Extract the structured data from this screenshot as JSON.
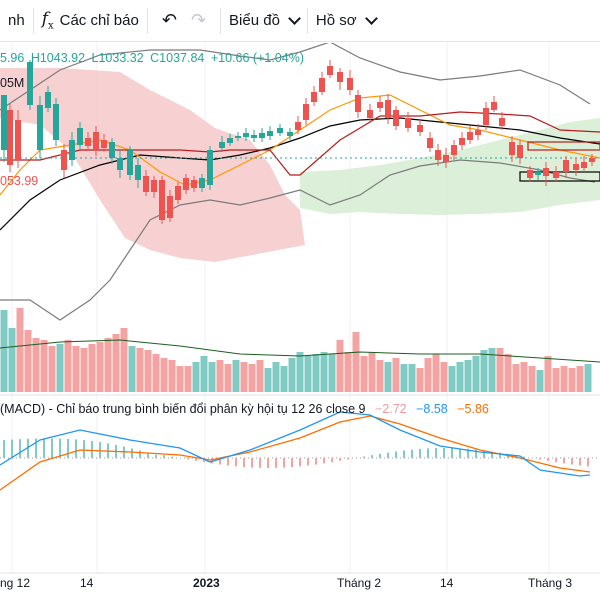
{
  "toolbar": {
    "partial_left_label": "nh",
    "indicators_label": "Các chỉ báo",
    "undo_symbol": "↶",
    "redo_symbol": "↷",
    "chart_menu_label": "Biểu đồ",
    "profile_menu_label": "Hồ sơ"
  },
  "legend": {
    "open_partial": "5.96",
    "high": "H1043.92",
    "low": "L1033.32",
    "close": "C1037.84",
    "change": "+10.66 (+1.04%)",
    "volume_partial": "05M",
    "price_tag": "053.99"
  },
  "macd": {
    "label": "(MACD) - Chỉ báo trung bình biến đổi phân kỳ hội tụ 12 26 close 9",
    "histogram": "−2.72",
    "macd_value": "−8.58",
    "signal_value": "−5.86"
  },
  "xaxis": {
    "labels": [
      "ng 12",
      "14",
      "2023",
      "Tháng 2",
      "14",
      "Tháng 3"
    ]
  },
  "colors": {
    "up": "#26a69a",
    "down": "#ef5350",
    "up_volume": "#80cbc4",
    "down_volume": "#f4a3a3",
    "macd": "#2196f3",
    "signal": "#ff6d00",
    "cloud_bear": "#f6c9c9",
    "cloud_bull": "#d6ecd2"
  }
}
